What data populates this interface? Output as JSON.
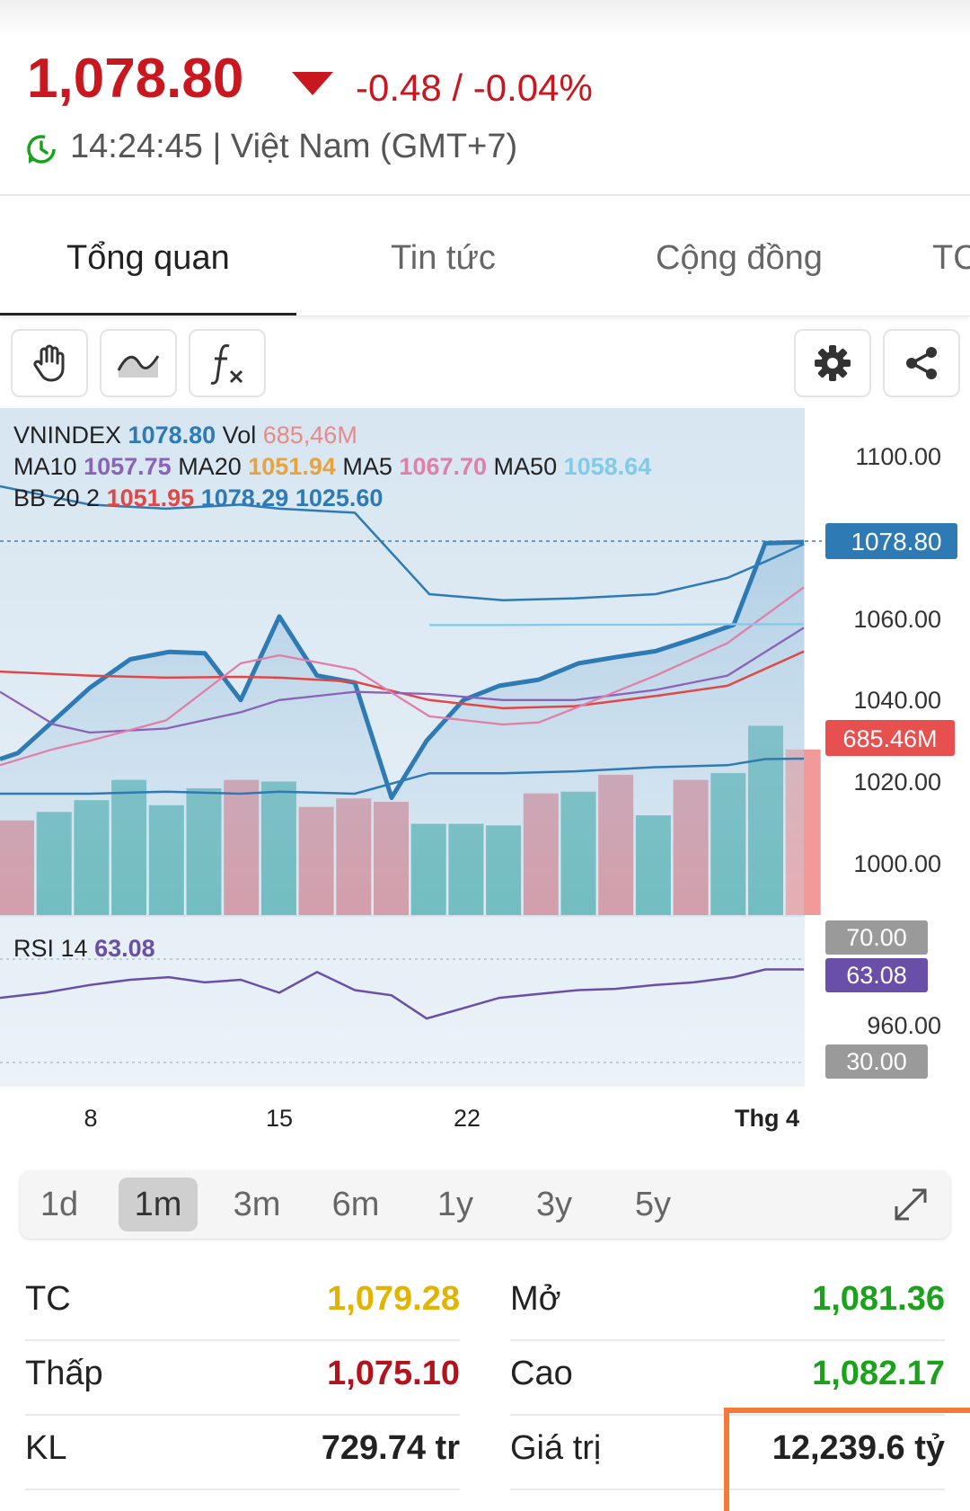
{
  "header": {
    "price": "1,078.80",
    "change": "-0.48 / -0.04%",
    "timestamp": "14:24:45 | Việt Nam (GMT+7)"
  },
  "tabs": [
    "Tổng quan",
    "Tin tức",
    "Cộng đồng",
    "TC"
  ],
  "toolbar": {
    "icons": [
      "hand-icon",
      "line-style-icon",
      "function-icon",
      "gear-icon",
      "share-icon"
    ]
  },
  "legend": {
    "line1": {
      "name": "VNINDEX",
      "value": "1078.80",
      "vol_label": "Vol",
      "vol": "685,46M"
    },
    "line2": {
      "ma10_label": "MA10",
      "ma10": "1057.75",
      "ma20_label": "MA20",
      "ma20": "1051.94",
      "ma5_label": "MA5",
      "ma5": "1067.70",
      "ma50_label": "MA50",
      "ma50": "1058.64"
    },
    "line3": {
      "label": "BB 20 2",
      "mid": "1051.95",
      "upper": "1078.29",
      "lower": "1025.60"
    },
    "rsi": {
      "label": "RSI 14",
      "value": "63.08"
    }
  },
  "axis": {
    "price_ticks": [
      "1100.00",
      "1060.00",
      "1040.00",
      "1020.00",
      "1000.00",
      "960.00"
    ],
    "price_tag": "1078.80",
    "volume_tag": "685.46M",
    "rsi_tags": {
      "upper": "70.00",
      "current": "63.08",
      "lower": "30.00"
    },
    "x_ticks": [
      "8",
      "15",
      "22",
      "Thg 4"
    ]
  },
  "colors": {
    "price_line": "#2e7ab5",
    "ma10": "#8a63b8",
    "ma20": "#e8a33c",
    "ma5": "#e07fa8",
    "ma50": "#7fcbe8",
    "bb_mid": "#e04848",
    "up_volume": "#4eb0ad",
    "down_volume": "#d9848f",
    "red": "#c8171e",
    "green": "#1aa31a",
    "yellow": "#e2b400"
  },
  "chart_data": {
    "type": "line",
    "title": "VNINDEX",
    "series": [
      {
        "name": "VNINDEX",
        "values": [
          1025.5,
          1027,
          1035,
          1043,
          1050,
          1054,
          1052,
          1051.5,
          1040,
          1060,
          1046,
          1040,
          1016,
          1026,
          1035,
          1040,
          1043,
          1044,
          1048,
          1050,
          1052,
          1055,
          1058,
          1063,
          1078.5,
          1078.8
        ]
      },
      {
        "name": "MA10",
        "values": [
          1040,
          1030,
          1026,
          1027,
          1029,
          1031,
          1033,
          1036,
          1038,
          1040,
          1042,
          1041,
          1039,
          1037,
          1035,
          1035,
          1034,
          1034,
          1036,
          1038,
          1040,
          1043,
          1047,
          1052,
          1055,
          1057.75
        ]
      },
      {
        "name": "MA20",
        "values": [
          1048,
          1047,
          1046,
          1045,
          1045,
          1045,
          1045,
          1045,
          1045,
          1046,
          1045,
          1044,
          1042,
          1040,
          1038,
          1037,
          1037,
          1037,
          1038,
          1039,
          1040,
          1041,
          1042,
          1044,
          1048,
          1051.94
        ]
      },
      {
        "name": "MA5",
        "values": [
          1024,
          1025,
          1027,
          1029,
          1031,
          1033,
          1038,
          1046,
          1049,
          1051,
          1049,
          1046,
          1040,
          1035,
          1034,
          1034,
          1034,
          1036,
          1040,
          1044,
          1048,
          1051,
          1054,
          1058,
          1063,
          1067.7
        ]
      },
      {
        "name": "MA50",
        "values": [
          null,
          null,
          null,
          null,
          null,
          null,
          null,
          null,
          null,
          null,
          null,
          null,
          1058.4,
          1058.4,
          1058.4,
          1058.4,
          1058.4,
          1058.5,
          1058.5,
          1058.5,
          1058.5,
          1058.5,
          1058.6,
          1058.6,
          1058.6,
          1058.64
        ]
      }
    ],
    "ylim": [
      960,
      1110
    ],
    "x_labels": [
      "8",
      "15",
      "22",
      "Thg 4"
    ]
  },
  "period_tabs": [
    "1d",
    "1m",
    "3m",
    "6m",
    "1y",
    "3y",
    "5y"
  ],
  "period_active_index": 1,
  "stats": {
    "tc_label": "TC",
    "tc": "1,079.28",
    "open_label": "Mở",
    "open": "1,081.36",
    "low_label": "Thấp",
    "low": "1,075.10",
    "high_label": "Cao",
    "high": "1,082.17",
    "kl_label": "KL",
    "kl": "729.74 tr",
    "value_label": "Giá trị",
    "value": "12,239.6 tỷ"
  }
}
